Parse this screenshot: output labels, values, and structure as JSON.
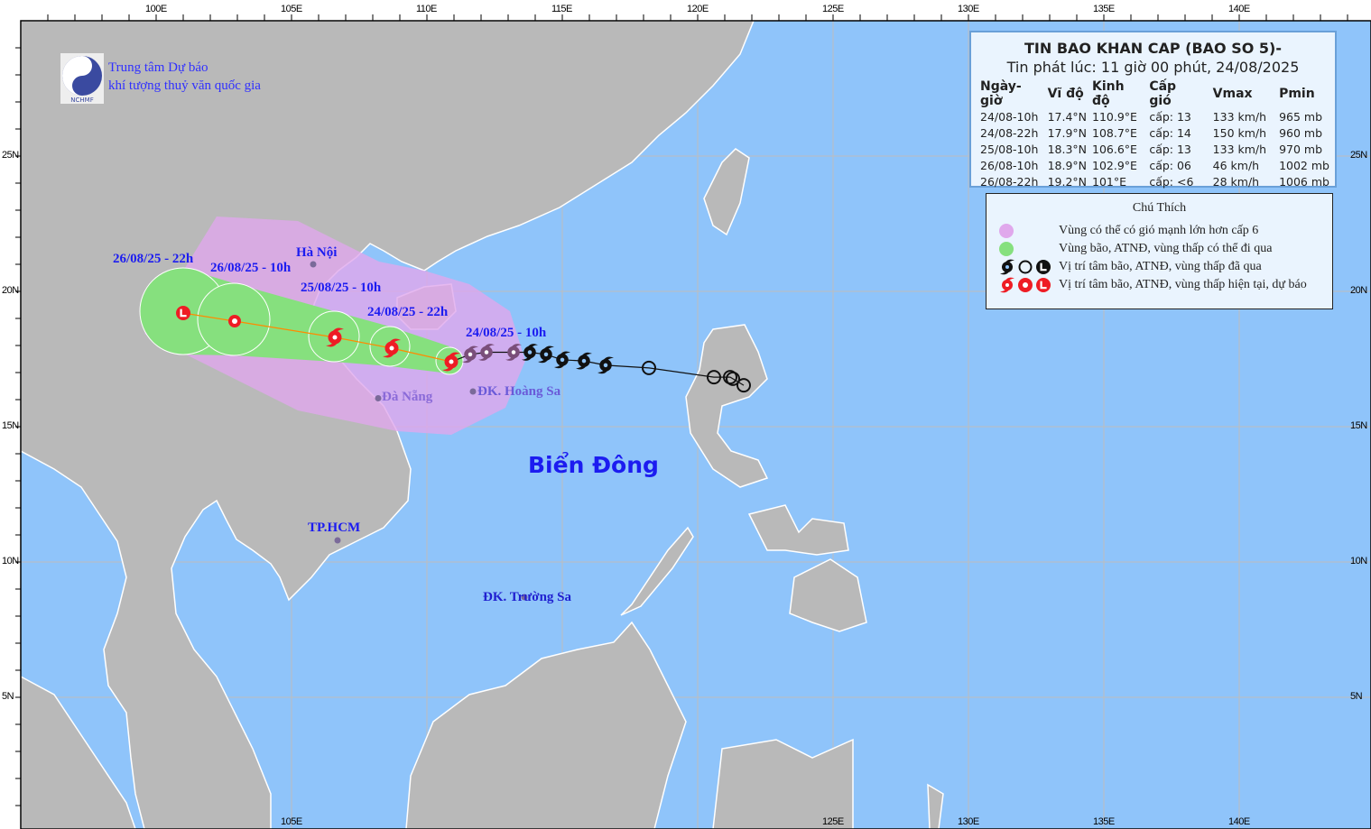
{
  "map": {
    "colors": {
      "ocean": "#8fc4fa",
      "land": "#b9b9b9",
      "grid": "#bdbdbd",
      "wind_zone": "#e0a8ec",
      "storm_zone": "#86e07e",
      "forecast": "#ee1c24",
      "past": "#111111",
      "label": "#1c1cf0"
    },
    "lon_ticks_top": [
      "100E",
      "105E",
      "110E",
      "115E",
      "120E",
      "125E",
      "130E",
      "135E",
      "140E"
    ],
    "lon_ticks_bottom": [
      "105E",
      "125E",
      "130E",
      "135E",
      "140E"
    ],
    "lat_ticks": [
      "25N",
      "20N",
      "15N",
      "10N",
      "5N"
    ],
    "sea_label": "Biển Đông",
    "places": [
      {
        "name": "Hà Nội",
        "lon": 105.8,
        "lat": 21.0
      },
      {
        "name": "Đà Nẵng",
        "lon": 108.2,
        "lat": 16.05
      },
      {
        "name": "ĐK. Hoàng Sa",
        "lon": 111.7,
        "lat": 16.3
      },
      {
        "name": "TP.HCM",
        "lon": 106.7,
        "lat": 10.8
      },
      {
        "name": "ĐK. Trường Sa",
        "lon": 113.6,
        "lat": 8.7
      }
    ],
    "forecast_labels": [
      "24/08/25 - 10h",
      "24/08/25 - 22h",
      "25/08/25 - 10h",
      "26/08/25 - 10h",
      "26/08/25 - 22h"
    ],
    "forecast_points": [
      {
        "lon": 110.9,
        "lat": 17.4,
        "type": "storm"
      },
      {
        "lon": 108.7,
        "lat": 17.9,
        "type": "storm"
      },
      {
        "lon": 106.6,
        "lat": 18.3,
        "type": "storm"
      },
      {
        "lon": 102.9,
        "lat": 18.9,
        "type": "depression"
      },
      {
        "lon": 101.0,
        "lat": 19.2,
        "type": "low"
      }
    ],
    "past_points": [
      {
        "lon": 111.6,
        "lat": 17.67,
        "type": "storm-faded"
      },
      {
        "lon": 112.2,
        "lat": 17.75,
        "type": "storm-faded"
      },
      {
        "lon": 113.2,
        "lat": 17.75,
        "type": "storm-faded"
      },
      {
        "lon": 113.8,
        "lat": 17.75,
        "type": "storm"
      },
      {
        "lon": 114.4,
        "lat": 17.67,
        "type": "storm"
      },
      {
        "lon": 115.0,
        "lat": 17.47,
        "type": "storm"
      },
      {
        "lon": 115.8,
        "lat": 17.43,
        "type": "storm"
      },
      {
        "lon": 116.6,
        "lat": 17.27,
        "type": "storm"
      },
      {
        "lon": 118.2,
        "lat": 17.17,
        "type": "depression"
      },
      {
        "lon": 120.6,
        "lat": 16.83,
        "type": "depression"
      },
      {
        "lon": 121.2,
        "lat": 16.83,
        "type": "depression"
      },
      {
        "lon": 121.3,
        "lat": 16.77,
        "type": "depression"
      },
      {
        "lon": 121.7,
        "lat": 16.53,
        "type": "depression"
      }
    ]
  },
  "logo": {
    "line1": "Trung tâm Dự báo",
    "line2": "khí tượng thuỷ văn quốc gia",
    "mark": "NCHMF"
  },
  "bulletin": {
    "title": "TIN BAO KHAN CAP (BAO SO 5)-",
    "issued": "Tin phát lúc: 11 giờ 00 phút, 24/08/2025",
    "headers": [
      "Ngày-giờ",
      "Vĩ độ",
      "Kinh độ",
      "Cấp gió",
      "Vmax",
      "Pmin"
    ],
    "rows": [
      [
        "24/08-10h",
        "17.4°N",
        "110.9°E",
        "cấp: 13",
        "133 km/h",
        "965 mb"
      ],
      [
        "24/08-22h",
        "17.9°N",
        "108.7°E",
        "cấp: 14",
        "150 km/h",
        "960 mb"
      ],
      [
        "25/08-10h",
        "18.3°N",
        "106.6°E",
        "cấp: 13",
        "133 km/h",
        "970 mb"
      ],
      [
        "26/08-10h",
        "18.9°N",
        "102.9°E",
        "cấp: 06",
        "46 km/h",
        "1002 mb"
      ],
      [
        "26/08-22h",
        "19.2°N",
        "101°E",
        "cấp: <6",
        "28 km/h",
        "1006 mb"
      ]
    ]
  },
  "legend": {
    "title": "Chú Thích",
    "items": [
      "Vùng có thể có gió mạnh lớn hơn cấp 6",
      "Vùng bão, ATNĐ, vùng thấp có thể đi qua",
      "Vị trí tâm bão, ATNĐ, vùng thấp đã qua",
      "Vị trí tâm bão, ATNĐ, vùng thấp hiện tại, dự báo"
    ]
  }
}
